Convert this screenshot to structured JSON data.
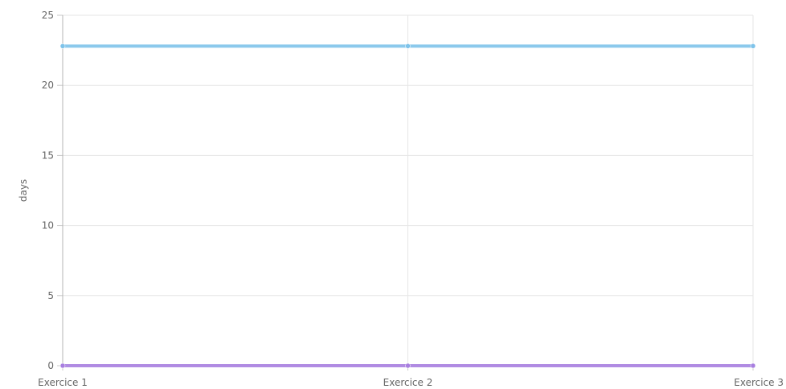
{
  "chart_data": {
    "type": "line",
    "title": "",
    "xlabel": "",
    "ylabel": "days",
    "categories": [
      "Exercice 1",
      "Exercice 2",
      "Exercice 3"
    ],
    "ylim": [
      0,
      25
    ],
    "yticks": [
      0,
      5,
      10,
      15,
      20,
      25
    ],
    "grid": true,
    "legend": "none",
    "series": [
      {
        "color": "#7ec3ea",
        "values": [
          22.8,
          22.8,
          22.8
        ]
      },
      {
        "color": "#a87fe0",
        "values": [
          0,
          0,
          0
        ]
      }
    ]
  }
}
